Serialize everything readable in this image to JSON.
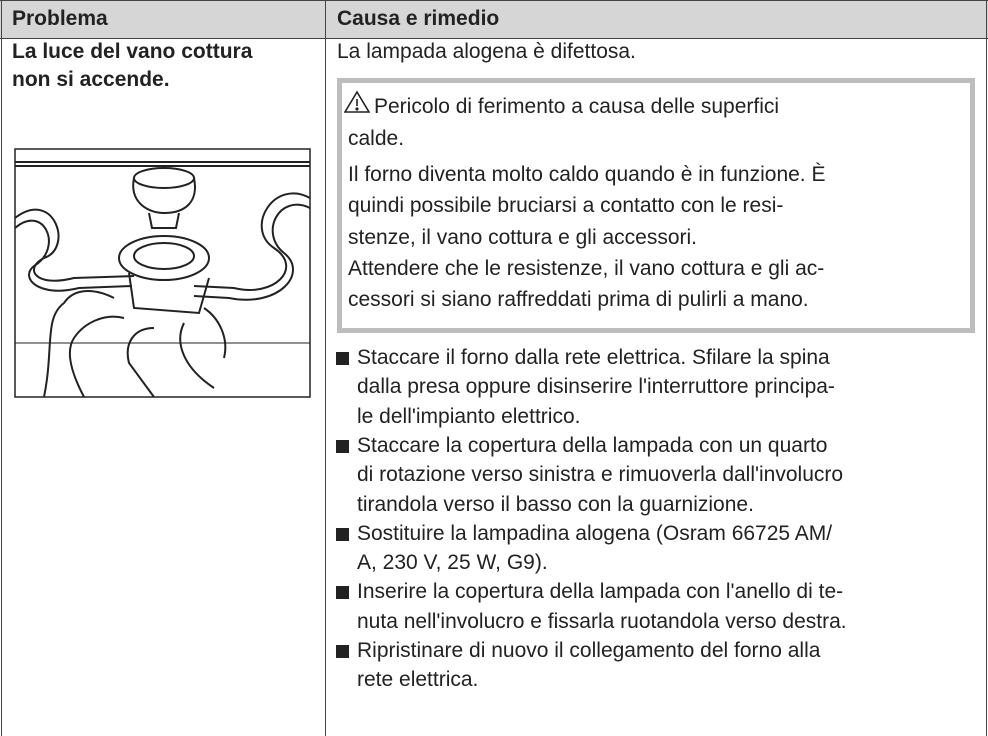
{
  "header": {
    "col1": "Problema",
    "col2": "Causa e rimedio"
  },
  "row": {
    "problem": [
      "La luce del vano cottura",
      "non si accende."
    ],
    "cause": "La lampada alogena è difettosa.",
    "warning": [
      "Pericolo di ferimento a causa delle superfici",
      "calde.",
      "Il forno diventa molto caldo quando è in funzione. È",
      "quindi possibile bruciarsi a contatto con le resi-",
      "stenze, il vano cottura e gli accessori.",
      "Attendere che le resistenze, il vano cottura e gli ac-",
      "cessori si siano raffreddati prima di pulirli a mano."
    ],
    "steps": [
      [
        "Staccare il forno dalla rete elettrica. Sfilare la spina",
        "dalla presa oppure disinserire l'interruttore principa-",
        "le dell'impianto elettrico."
      ],
      [
        "Staccare la copertura della lampada con un quarto",
        "di rotazione verso sinistra e rimuoverla dall'involucro",
        "tirandola verso il basso con la guarnizione."
      ],
      [
        "Sostituire la lampadina alogena (Osram 66725 AM/",
        "A, 230 V, 25 W, G9)."
      ],
      [
        "Inserire la copertura della lampada con l'anello di te-",
        "nuta nell'involucro e fissarla ruotandola verso destra."
      ],
      [
        "Ripristinare di nuovo il collegamento del forno alla",
        "rete elettrica."
      ]
    ]
  }
}
